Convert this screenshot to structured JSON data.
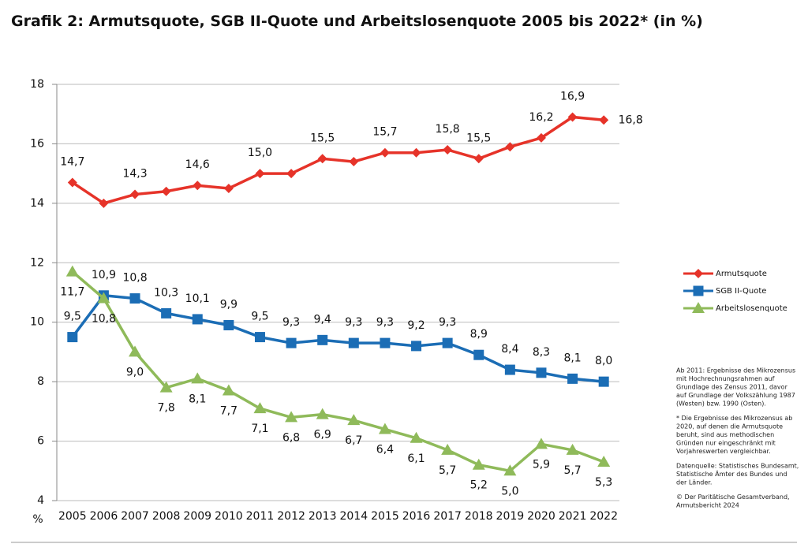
{
  "chart_data": {
    "type": "line",
    "title": "Grafik 2: Armutsquote, SGB II-Quote und Arbeitslosenquote 2005 bis 2022* (in %)",
    "y_unit": "%",
    "categories": [
      "2005",
      "2006",
      "2007",
      "2008",
      "2009",
      "2010",
      "2011",
      "2012",
      "2013",
      "2014",
      "2015",
      "2016",
      "2017",
      "2018",
      "2019",
      "2020",
      "2021",
      "2022"
    ],
    "series": [
      {
        "name": "Armutsquote",
        "color": "#e63329",
        "marker": "diamond",
        "label_side": "above",
        "values": [
          14.7,
          14.0,
          14.3,
          14.4,
          14.6,
          14.5,
          15.0,
          15.0,
          15.5,
          15.4,
          15.7,
          15.7,
          15.8,
          15.5,
          15.9,
          16.2,
          16.9,
          16.8
        ],
        "value_labels": [
          "14,7",
          null,
          "14,3",
          null,
          "14,6",
          null,
          "15,0",
          null,
          "15,5",
          null,
          "15,7",
          null,
          "15,8",
          "15,5",
          null,
          "16,2",
          "16,9",
          "16,8"
        ]
      },
      {
        "name": "SGB II-Quote",
        "color": "#1b6db5",
        "marker": "square",
        "label_side": "above",
        "values": [
          9.5,
          10.9,
          10.8,
          10.3,
          10.1,
          9.9,
          9.5,
          9.3,
          9.4,
          9.3,
          9.3,
          9.2,
          9.3,
          8.9,
          8.4,
          8.3,
          8.1,
          8.0
        ],
        "value_labels": [
          "9,5",
          "10,9",
          "10,8",
          "10,3",
          "10,1",
          "9,9",
          "9,5",
          "9,3",
          "9,4",
          "9,3",
          "9,3",
          "9,2",
          "9,3",
          "8,9",
          "8,4",
          "8,3",
          "8,1",
          "8,0"
        ]
      },
      {
        "name": "Arbeitslosenquote",
        "color": "#8fba5a",
        "marker": "triangle",
        "label_side": "below",
        "values": [
          11.7,
          10.8,
          9.0,
          7.8,
          8.1,
          7.7,
          7.1,
          6.8,
          6.9,
          6.7,
          6.4,
          6.1,
          5.7,
          5.2,
          5.0,
          5.9,
          5.7,
          5.3
        ],
        "value_labels": [
          "11,7",
          "10,8",
          "9,0",
          "7,8",
          "8,1",
          "7,7",
          "7,1",
          "6,8",
          "6,9",
          "6,7",
          "6,4",
          "6,1",
          "5,7",
          "5,2",
          "5,0",
          "5,9",
          "5,7",
          "5,3"
        ]
      }
    ],
    "ylim": [
      4,
      18
    ],
    "yticks": [
      4,
      6,
      8,
      10,
      12,
      14,
      16,
      18
    ],
    "grid": true,
    "notes": [
      [
        "Ab 2011: Ergebnisse des Mikrozensus",
        "mit Hochrechnungsrahmen auf",
        "Grundlage des Zensus 2011, davor",
        "auf Grundlage der Volkszählung 1987",
        "(Westen) bzw. 1990 (Osten)."
      ],
      [
        "* Die Ergebnisse des Mikrozensus ab",
        "2020, auf denen die Armutsquote",
        "beruht, sind aus methodischen",
        "Gründen nur eingeschränkt mit",
        "Vorjahreswerten vergleichbar."
      ],
      [
        "Datenquelle: Statistisches Bundesamt,",
        "Statistische Ämter des Bundes und",
        "der Länder."
      ],
      [
        "© Der Paritätische Gesamtverband,",
        "Armutsbericht 2024"
      ]
    ]
  }
}
